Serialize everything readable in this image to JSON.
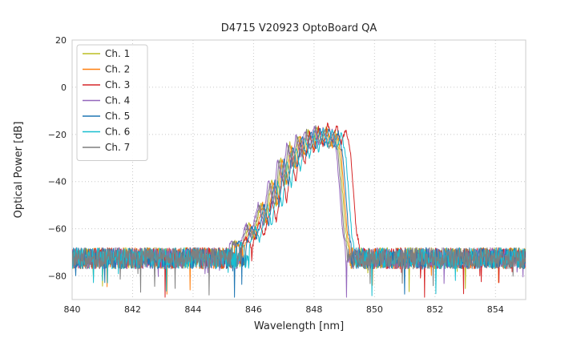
{
  "chart_data": {
    "type": "line",
    "title": "D4715 V20923 OptoBoard QA",
    "xlabel": "Wavelength [nm]",
    "ylabel": "Optical Power [dB]",
    "xlim": [
      840,
      855
    ],
    "ylim": [
      -90,
      20
    ],
    "grid": true,
    "legend_position": "upper left",
    "xticks": [
      {
        "value": 840,
        "label": "840"
      },
      {
        "value": 842,
        "label": "842"
      },
      {
        "value": 844,
        "label": "844"
      },
      {
        "value": 846,
        "label": "846"
      },
      {
        "value": 848,
        "label": "848"
      },
      {
        "value": 850,
        "label": "850"
      },
      {
        "value": 852,
        "label": "852"
      },
      {
        "value": 854,
        "label": "854"
      }
    ],
    "yticks": [
      {
        "value": 20,
        "label": "20"
      },
      {
        "value": 0,
        "label": "0"
      },
      {
        "value": -20,
        "label": "−20"
      },
      {
        "value": -40,
        "label": "−40"
      },
      {
        "value": -60,
        "label": "−60"
      },
      {
        "value": -80,
        "label": "−80"
      }
    ],
    "noise": {
      "floor_db": -72.5,
      "band_db": 9,
      "spike_prob": 0.012,
      "spike_depth_db": 16
    },
    "envelope": [
      [
        844.7,
        -72
      ],
      [
        845.0,
        -69
      ],
      [
        845.2,
        -71
      ],
      [
        845.45,
        -65
      ],
      [
        845.65,
        -69
      ],
      [
        845.9,
        -58
      ],
      [
        846.05,
        -64
      ],
      [
        846.3,
        -49
      ],
      [
        846.45,
        -58
      ],
      [
        846.65,
        -39
      ],
      [
        846.8,
        -50
      ],
      [
        846.95,
        -30
      ],
      [
        847.1,
        -41
      ],
      [
        847.25,
        -24
      ],
      [
        847.4,
        -34
      ],
      [
        847.55,
        -20
      ],
      [
        847.7,
        -29
      ],
      [
        847.85,
        -18
      ],
      [
        848.0,
        -26
      ],
      [
        848.15,
        -16.5
      ],
      [
        848.3,
        -24
      ],
      [
        848.45,
        -17
      ],
      [
        848.6,
        -25
      ],
      [
        848.75,
        -18.5
      ],
      [
        848.9,
        -28
      ],
      [
        849.0,
        -45
      ],
      [
        849.1,
        -62
      ],
      [
        849.25,
        -71
      ],
      [
        849.4,
        -72.5
      ]
    ],
    "series": [
      {
        "name": "Ch. 1",
        "color": "#bcbd22",
        "shift_nm": -0.05,
        "gain_db": 0.0,
        "seed": 11
      },
      {
        "name": "Ch. 2",
        "color": "#ff7f0e",
        "shift_nm": 0.0,
        "gain_db": -0.5,
        "seed": 22
      },
      {
        "name": "Ch. 3",
        "color": "#d62728",
        "shift_nm": 0.3,
        "gain_db": 1.0,
        "seed": 33
      },
      {
        "name": "Ch. 4",
        "color": "#9467bd",
        "shift_nm": -0.15,
        "gain_db": 0.0,
        "seed": 44
      },
      {
        "name": "Ch. 5",
        "color": "#1f77b4",
        "shift_nm": 0.05,
        "gain_db": -0.5,
        "seed": 55
      },
      {
        "name": "Ch. 6",
        "color": "#17becf",
        "shift_nm": 0.15,
        "gain_db": -1.0,
        "seed": 66
      },
      {
        "name": "Ch. 7",
        "color": "#7f7f7f",
        "shift_nm": -0.1,
        "gain_db": -0.5,
        "seed": 77
      }
    ]
  }
}
